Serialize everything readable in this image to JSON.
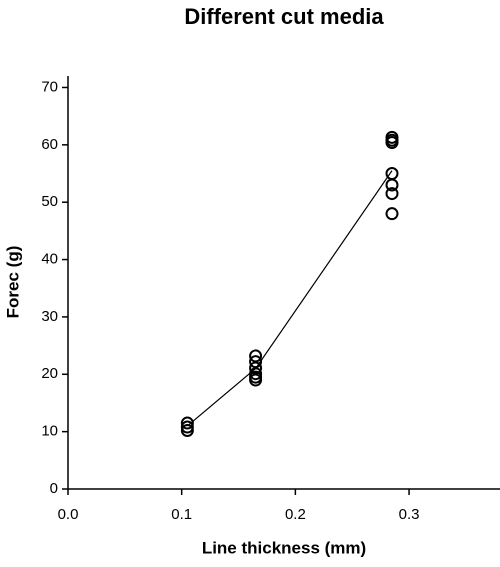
{
  "chart_data": {
    "type": "scatter",
    "title": "Different cut media",
    "x_label": "Line thickness (mm)",
    "y_label": "Forec (g)",
    "xlim": [
      0,
      0.38
    ],
    "ylim": [
      0,
      72
    ],
    "xticks": [
      {
        "value": 0,
        "label": "0.0"
      },
      {
        "value": 0.1,
        "label": "0.1"
      },
      {
        "value": 0.2,
        "label": "0.2"
      },
      {
        "value": 0.3,
        "label": "0.3"
      }
    ],
    "yticks": [
      0,
      10,
      20,
      30,
      40,
      50,
      60,
      70
    ],
    "points": {
      "color": "#000000",
      "x": [
        0.105,
        0.105,
        0.105,
        0.165,
        0.165,
        0.165,
        0.165,
        0.165,
        0.165,
        0.285,
        0.285,
        0.285,
        0.285,
        0.285,
        0.285,
        0.285
      ],
      "y": [
        11.5,
        10.8,
        10.2,
        23.2,
        22.2,
        21.1,
        20.1,
        19.5,
        19,
        61.3,
        60.8,
        60.4,
        55,
        53,
        51.5,
        48
      ]
    },
    "mean_line": {
      "color": "#000000",
      "x": [
        0.105,
        0.165,
        0.285
      ],
      "y": [
        11,
        21,
        55.5
      ]
    }
  }
}
